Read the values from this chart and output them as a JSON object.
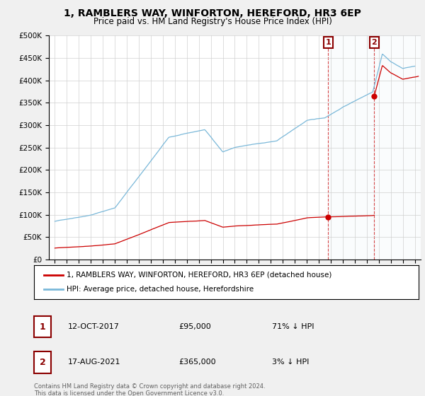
{
  "title": "1, RAMBLERS WAY, WINFORTON, HEREFORD, HR3 6EP",
  "subtitle": "Price paid vs. HM Land Registry's House Price Index (HPI)",
  "legend_label_red": "1, RAMBLERS WAY, WINFORTON, HEREFORD, HR3 6EP (detached house)",
  "legend_label_blue": "HPI: Average price, detached house, Herefordshire",
  "footnote": "Contains HM Land Registry data © Crown copyright and database right 2024.\nThis data is licensed under the Open Government Licence v3.0.",
  "sale1_date": "12-OCT-2017",
  "sale1_price": "£95,000",
  "sale1_hpi": "71% ↓ HPI",
  "sale1_year": 2017.78,
  "sale1_value": 95000,
  "sale2_date": "17-AUG-2021",
  "sale2_price": "£365,000",
  "sale2_hpi": "3% ↓ HPI",
  "sale2_year": 2021.62,
  "sale2_value": 365000,
  "hpi_color": "#7ab8d9",
  "price_color": "#cc0000",
  "background_color": "#f0f0f0",
  "plot_background": "#ffffff",
  "ylim": [
    0,
    500000
  ],
  "xlim_start": 1994.5,
  "xlim_end": 2025.5,
  "hpi_seed": 42,
  "hpi_noise_scale": 1500,
  "red_noise_scale": 800
}
